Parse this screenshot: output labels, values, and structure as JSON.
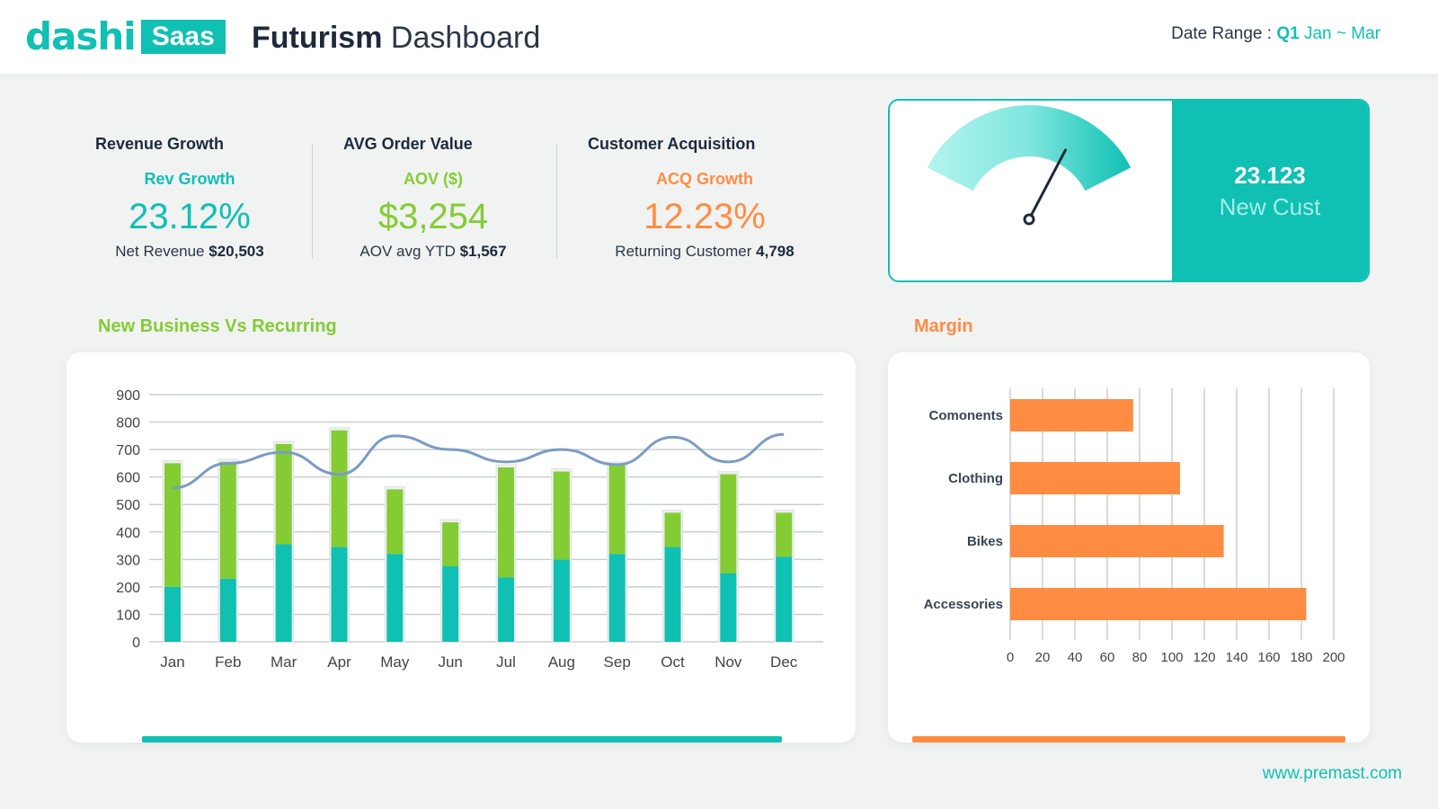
{
  "header": {
    "logo_text": "dashi",
    "logo_badge": "Saas",
    "title_bold": "Futurism",
    "title_light": "Dashboard",
    "date_range_label": "Date Range :",
    "date_range_quarter": "Q1",
    "date_range_value": "Jan ~ Mar"
  },
  "kpis": [
    {
      "heading": "Revenue Growth",
      "sub": "Rev Growth",
      "value": "23.12%",
      "foot_label": "Net Revenue",
      "foot_value": "$20,503",
      "color": "#0fc0b3"
    },
    {
      "heading": "AVG Order Value",
      "sub": "AOV ($)",
      "value": "$3,254",
      "foot_label": "AOV avg YTD",
      "foot_value": "$1,567",
      "color": "#84cc34"
    },
    {
      "heading": "Customer Acquisition",
      "sub": "ACQ Growth",
      "value": "12.23%",
      "foot_label": "Returning Customer",
      "foot_value": "4,798",
      "color": "#ff8c42"
    }
  ],
  "gauge": {
    "value": "23.123",
    "label": "New Cust",
    "needle_fraction": 0.72
  },
  "sections": {
    "left_title": "New Business Vs Recurring",
    "right_title": "Margin"
  },
  "footer": {
    "link": "www.premast.com"
  },
  "colors": {
    "teal": "#0fc0b3",
    "green": "#84cc34",
    "orange": "#ff8c42",
    "line": "#7b9cc4"
  },
  "chart_data": [
    {
      "type": "bar",
      "stacked": true,
      "categories": [
        "Jan",
        "Feb",
        "Mar",
        "Apr",
        "May",
        "Jun",
        "Jul",
        "Aug",
        "Sep",
        "Oct",
        "Nov",
        "Dec"
      ],
      "series": [
        {
          "values": [
            200,
            230,
            355,
            345,
            320,
            275,
            235,
            300,
            320,
            345,
            250,
            310
          ]
        },
        {
          "values": [
            450,
            425,
            365,
            425,
            235,
            160,
            400,
            320,
            325,
            125,
            360,
            160
          ]
        },
        {
          "type": "line",
          "values": [
            560,
            650,
            690,
            610,
            750,
            700,
            655,
            700,
            645,
            745,
            655,
            755
          ]
        }
      ],
      "ylim": [
        0,
        900
      ],
      "yticks": [
        0,
        100,
        200,
        300,
        400,
        500,
        600,
        700,
        800,
        900
      ],
      "grid": true
    },
    {
      "type": "bar",
      "orientation": "horizontal",
      "categories": [
        "Comonents",
        "Clothing",
        "Bikes",
        "Accessories"
      ],
      "values": [
        76,
        105,
        132,
        183
      ],
      "xlim": [
        0,
        200
      ],
      "xticks": [
        0,
        20,
        40,
        60,
        80,
        100,
        120,
        140,
        160,
        180,
        200
      ],
      "grid": true
    }
  ]
}
